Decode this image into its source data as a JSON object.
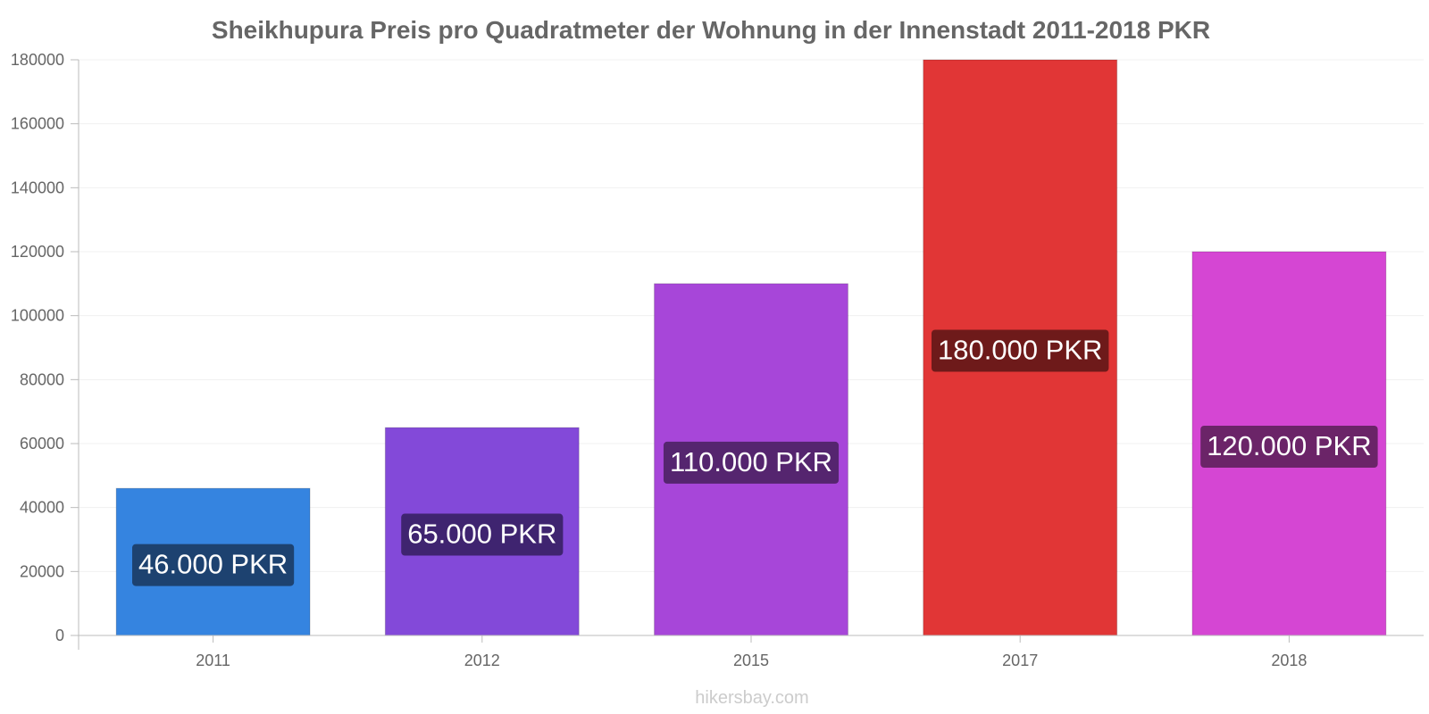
{
  "chart_data": {
    "type": "bar",
    "title": "Sheikhupura Preis pro Quadratmeter der Wohnung in der Innenstadt 2011-2018 PKR",
    "xlabel": "",
    "ylabel": "",
    "categories": [
      "2011",
      "2012",
      "2015",
      "2017",
      "2018"
    ],
    "values": [
      46000,
      65000,
      110000,
      180000,
      120000
    ],
    "data_labels": [
      "46.000 PKR",
      "65.000 PKR",
      "110.000 PKR",
      "180.000 PKR",
      "120.000 PKR"
    ],
    "colors": [
      "#3584e0",
      "#8349d9",
      "#a746d9",
      "#e13636",
      "#d546d3"
    ],
    "label_bg_colors": [
      "#1d4270",
      "#3f2470",
      "#55256f",
      "#6e1a1a",
      "#6b2468"
    ],
    "ylim": [
      0,
      180000
    ],
    "yticks": [
      0,
      20000,
      40000,
      60000,
      80000,
      100000,
      120000,
      140000,
      160000,
      180000
    ],
    "grid": true,
    "legend": "none"
  },
  "footer": {
    "source": "hikersbay.com"
  }
}
